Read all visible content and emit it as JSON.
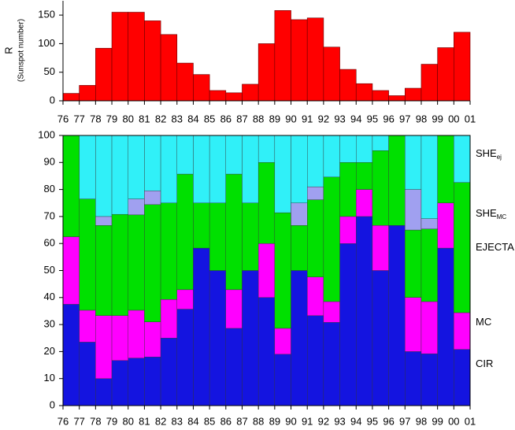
{
  "chart_data": [
    {
      "type": "histogram",
      "ylabel": "R",
      "ylabel_note": "(Sunspot number)",
      "bins": [
        1976,
        1977,
        1978,
        1979,
        1980,
        1981,
        1982,
        1983,
        1984,
        1985,
        1986,
        1987,
        1988,
        1989,
        1990,
        1991,
        1992,
        1993,
        1994,
        1995,
        1996,
        1997,
        1998,
        1999,
        2000,
        2001
      ],
      "values": [
        13,
        27,
        92,
        155,
        155,
        140,
        116,
        66,
        46,
        18,
        14,
        29,
        100,
        158,
        142,
        145,
        94,
        55,
        30,
        18,
        9,
        22,
        64,
        93,
        120
      ],
      "color": "#ff0000",
      "xticks": [
        {
          "value": 1976,
          "label": "76"
        },
        {
          "value": 1977,
          "label": "77"
        },
        {
          "value": 1978,
          "label": "78"
        },
        {
          "value": 1979,
          "label": "79"
        },
        {
          "value": 1980,
          "label": "80"
        },
        {
          "value": 1981,
          "label": "81"
        },
        {
          "value": 1982,
          "label": "82"
        },
        {
          "value": 1983,
          "label": "83"
        },
        {
          "value": 1984,
          "label": "84"
        },
        {
          "value": 1985,
          "label": "85"
        },
        {
          "value": 1986,
          "label": "86"
        },
        {
          "value": 1987,
          "label": "87"
        },
        {
          "value": 1988,
          "label": "88"
        },
        {
          "value": 1989,
          "label": "89"
        },
        {
          "value": 1990,
          "label": "90"
        },
        {
          "value": 1991,
          "label": "91"
        },
        {
          "value": 1992,
          "label": "92"
        },
        {
          "value": 1993,
          "label": "93"
        },
        {
          "value": 1994,
          "label": "94"
        },
        {
          "value": 1995,
          "label": "95"
        },
        {
          "value": 1996,
          "label": "96"
        },
        {
          "value": 1997,
          "label": "97"
        },
        {
          "value": 1998,
          "label": "98"
        },
        {
          "value": 1999,
          "label": "99"
        },
        {
          "value": 2000,
          "label": "00"
        },
        {
          "value": 2001,
          "label": "01"
        }
      ],
      "xlim": [
        1976,
        2001
      ],
      "ylim": [
        0,
        175
      ],
      "yticks": [
        0,
        50,
        100,
        150
      ]
    },
    {
      "type": "stacked_histogram",
      "bins": [
        1976,
        1977,
        1978,
        1979,
        1980,
        1981,
        1982,
        1983,
        1984,
        1985,
        1986,
        1987,
        1988,
        1989,
        1990,
        1991,
        1992,
        1993,
        1994,
        1995,
        1996,
        1997,
        1998,
        1999,
        2000,
        2001
      ],
      "series": [
        {
          "name": "CIR",
          "color": "#1414e0",
          "values": [
            37.5,
            23.5,
            10,
            16.7,
            17.6,
            18,
            25,
            35.7,
            58.3,
            50,
            28.6,
            50,
            40,
            19,
            50,
            33.3,
            30.8,
            60,
            70,
            50,
            66.7,
            20,
            19.2,
            58.3,
            20.8
          ]
        },
        {
          "name": "MC",
          "color": "#ff00ff",
          "values": [
            25,
            11.8,
            23.3,
            16.6,
            17.7,
            13,
            14.3,
            7.2,
            0,
            0,
            14.3,
            0,
            20,
            9.6,
            0,
            14.3,
            7.7,
            10,
            10,
            16.7,
            0,
            20,
            19.3,
            16.7,
            13.6
          ]
        },
        {
          "name": "EJECTA",
          "color": "#00e000",
          "values": [
            37.5,
            41.2,
            33.4,
            37.5,
            35.3,
            43.4,
            35.7,
            42.8,
            16.7,
            25,
            42.8,
            25,
            30,
            42.8,
            16.7,
            28.6,
            46.1,
            20,
            10,
            27.7,
            33.3,
            25,
            26.9,
            25,
            48.2
          ]
        },
        {
          "name": "SHE",
          "subscript": "MC",
          "color": "#a0a0f0",
          "values": [
            0,
            0,
            3.3,
            0,
            5.9,
            5.1,
            0,
            0,
            0,
            0,
            0,
            0,
            0,
            0,
            8.3,
            4.8,
            0,
            0,
            0,
            0,
            0,
            15,
            3.8,
            0,
            0
          ]
        },
        {
          "name": "SHE",
          "subscript": "ej",
          "color": "#30f0f8",
          "values": [
            0,
            23.5,
            30,
            29.2,
            23.5,
            20.5,
            25,
            14.3,
            25,
            25,
            14.3,
            25,
            10,
            28.6,
            25,
            19,
            15.4,
            10,
            10,
            5.6,
            0,
            20,
            30.8,
            0,
            17.4
          ]
        }
      ],
      "xticks": [
        {
          "value": 1976,
          "label": "76"
        },
        {
          "value": 1977,
          "label": "77"
        },
        {
          "value": 1978,
          "label": "78"
        },
        {
          "value": 1979,
          "label": "79"
        },
        {
          "value": 1980,
          "label": "80"
        },
        {
          "value": 1981,
          "label": "81"
        },
        {
          "value": 1982,
          "label": "82"
        },
        {
          "value": 1983,
          "label": "83"
        },
        {
          "value": 1984,
          "label": "84"
        },
        {
          "value": 1985,
          "label": "85"
        },
        {
          "value": 1986,
          "label": "86"
        },
        {
          "value": 1987,
          "label": "87"
        },
        {
          "value": 1988,
          "label": "88"
        },
        {
          "value": 1989,
          "label": "89"
        },
        {
          "value": 1990,
          "label": "90"
        },
        {
          "value": 1991,
          "label": "91"
        },
        {
          "value": 1992,
          "label": "92"
        },
        {
          "value": 1993,
          "label": "93"
        },
        {
          "value": 1994,
          "label": "94"
        },
        {
          "value": 1995,
          "label": "95"
        },
        {
          "value": 1996,
          "label": "96"
        },
        {
          "value": 1997,
          "label": "97"
        },
        {
          "value": 1998,
          "label": "98"
        },
        {
          "value": 1999,
          "label": "99"
        },
        {
          "value": 2000,
          "label": "00"
        },
        {
          "value": 2001,
          "label": "01"
        }
      ],
      "xlim": [
        1976,
        2001
      ],
      "ylim": [
        0,
        100
      ],
      "yticks": [
        0,
        10,
        20,
        30,
        40,
        50,
        60,
        70,
        80,
        90,
        100
      ]
    }
  ]
}
